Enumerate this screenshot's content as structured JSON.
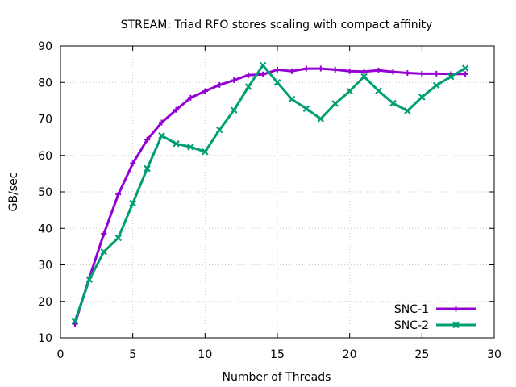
{
  "chart_data": {
    "type": "line",
    "title": "STREAM: Triad RFO stores scaling with compact affinity",
    "xlabel": "Number of Threads",
    "ylabel": "GB/sec",
    "xlim": [
      0,
      30
    ],
    "ylim": [
      10,
      90
    ],
    "xticks": [
      0,
      5,
      10,
      15,
      20,
      25,
      30
    ],
    "yticks": [
      10,
      20,
      30,
      40,
      50,
      60,
      70,
      80,
      90
    ],
    "grid": true,
    "legend_position": "bottom-right",
    "series": [
      {
        "name": "SNC-1",
        "color": "#9400d3",
        "marker": "plus",
        "x": [
          1,
          2,
          3,
          4,
          5,
          6,
          7,
          8,
          9,
          10,
          11,
          12,
          13,
          14,
          15,
          16,
          17,
          18,
          19,
          20,
          21,
          22,
          23,
          24,
          25,
          26,
          27,
          28
        ],
        "y": [
          13.8,
          26.5,
          38.5,
          49.3,
          57.8,
          64.3,
          69.0,
          72.5,
          75.8,
          77.6,
          79.3,
          80.6,
          82.0,
          82.2,
          83.5,
          83.1,
          83.8,
          83.8,
          83.5,
          83.1,
          83.0,
          83.3,
          82.9,
          82.6,
          82.4,
          82.4,
          82.3,
          82.3
        ]
      },
      {
        "name": "SNC-2",
        "color": "#009e73",
        "marker": "x",
        "x": [
          1,
          2,
          3,
          4,
          5,
          6,
          7,
          8,
          9,
          10,
          11,
          12,
          13,
          14,
          15,
          16,
          17,
          18,
          19,
          20,
          21,
          22,
          23,
          24,
          25,
          26,
          27,
          28
        ],
        "y": [
          14.5,
          26.0,
          33.6,
          37.4,
          46.9,
          56.4,
          65.4,
          63.2,
          62.3,
          61.0,
          67.0,
          72.4,
          78.8,
          84.7,
          80.0,
          75.4,
          72.8,
          70.0,
          74.2,
          77.6,
          81.6,
          77.7,
          74.3,
          72.2,
          76.0,
          79.2,
          81.6,
          83.9
        ]
      }
    ]
  }
}
